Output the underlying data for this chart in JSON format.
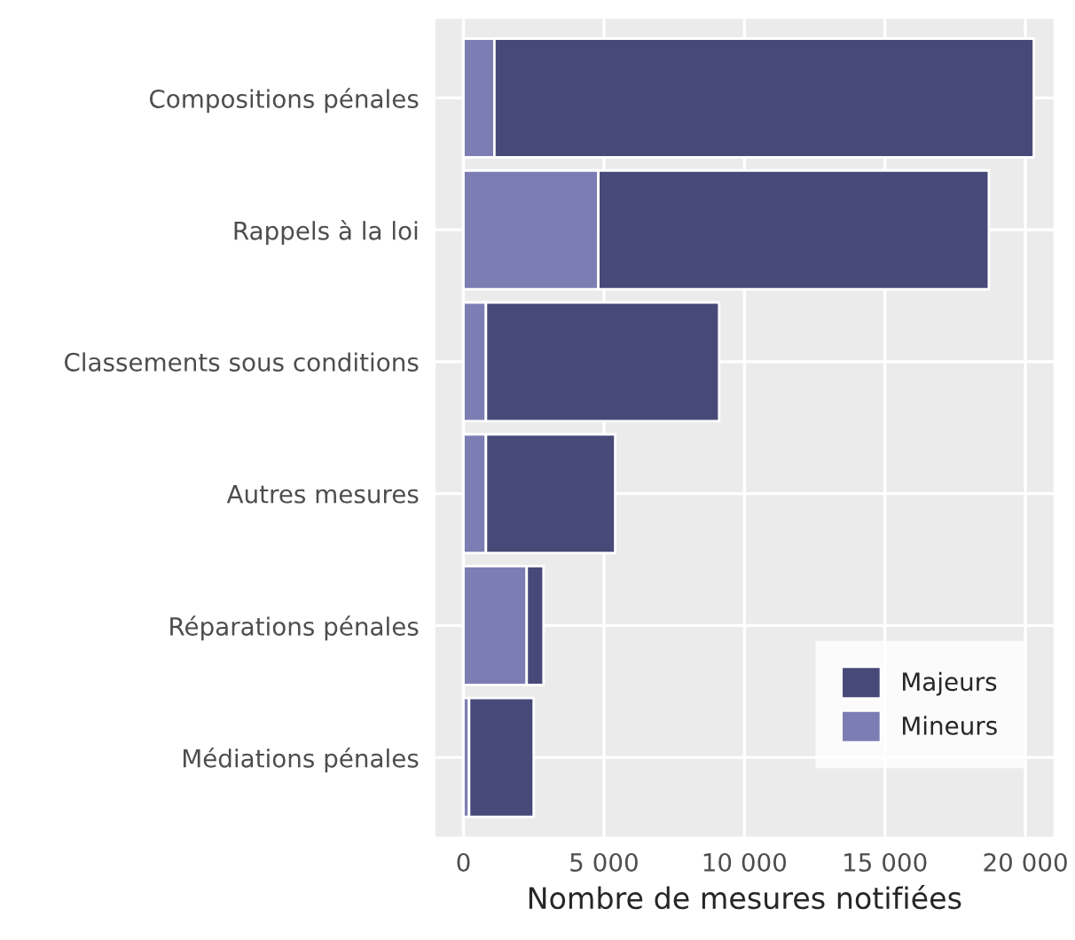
{
  "chart_data": {
    "type": "bar",
    "orientation": "horizontal",
    "stacked": true,
    "categories": [
      "Compositions pénales",
      "Rappels à la loi",
      "Classements sous conditions",
      "Autres mesures",
      "Réparations pénales",
      "Médiations pénales"
    ],
    "series": [
      {
        "name": "Mineurs",
        "color": "#7c7db3",
        "values": [
          1100,
          4800,
          800,
          800,
          2250,
          200
        ]
      },
      {
        "name": "Majeurs",
        "color": "#474a78",
        "values": [
          19200,
          13900,
          8300,
          4600,
          600,
          2300
        ]
      }
    ],
    "xlabel": "Nombre de mesures notifiées",
    "xlim": [
      -1000,
      21000
    ],
    "xticks": [
      0,
      {
        "value": 5000,
        "label": "5 000"
      },
      {
        "value": 10000,
        "label": "10 000"
      },
      {
        "value": 15000,
        "label": "15 000"
      },
      {
        "value": 20000,
        "label": "20 000"
      }
    ],
    "grid": true,
    "legend": "bottom right"
  }
}
